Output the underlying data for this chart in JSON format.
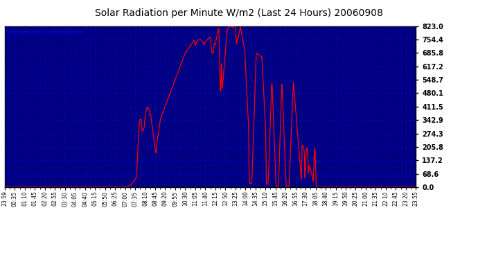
{
  "title": "Solar Radiation per Minute W/m2 (Last 24 Hours) 20060908",
  "copyright": "Copyright 2006 Cartronics.com",
  "outer_bg": "#FFFFFF",
  "plot_bg_color": "#000080",
  "line_color": "#FF0000",
  "grid_major_color": "#0000CD",
  "grid_minor_color": "#0000CD",
  "ylabel_color": "#000000",
  "title_color": "#000000",
  "ymin": 0.0,
  "ymax": 823.0,
  "yticks": [
    0.0,
    68.6,
    137.2,
    205.8,
    274.3,
    342.9,
    411.5,
    480.1,
    548.7,
    617.2,
    685.8,
    754.4,
    823.0
  ],
  "x_labels": [
    "23:59",
    "00:35",
    "01:10",
    "01:45",
    "02:20",
    "02:55",
    "03:30",
    "04:05",
    "04:40",
    "05:15",
    "05:50",
    "06:25",
    "07:00",
    "07:35",
    "08:10",
    "08:45",
    "09:20",
    "09:55",
    "10:30",
    "11:05",
    "11:40",
    "12:15",
    "12:50",
    "13:25",
    "14:00",
    "14:35",
    "15:10",
    "15:45",
    "16:20",
    "16:55",
    "17:30",
    "18:05",
    "18:40",
    "19:15",
    "19:50",
    "20:25",
    "21:00",
    "21:35",
    "22:10",
    "22:45",
    "23:20",
    "23:55"
  ],
  "n_xlabels": 42,
  "total_minutes": 1440
}
